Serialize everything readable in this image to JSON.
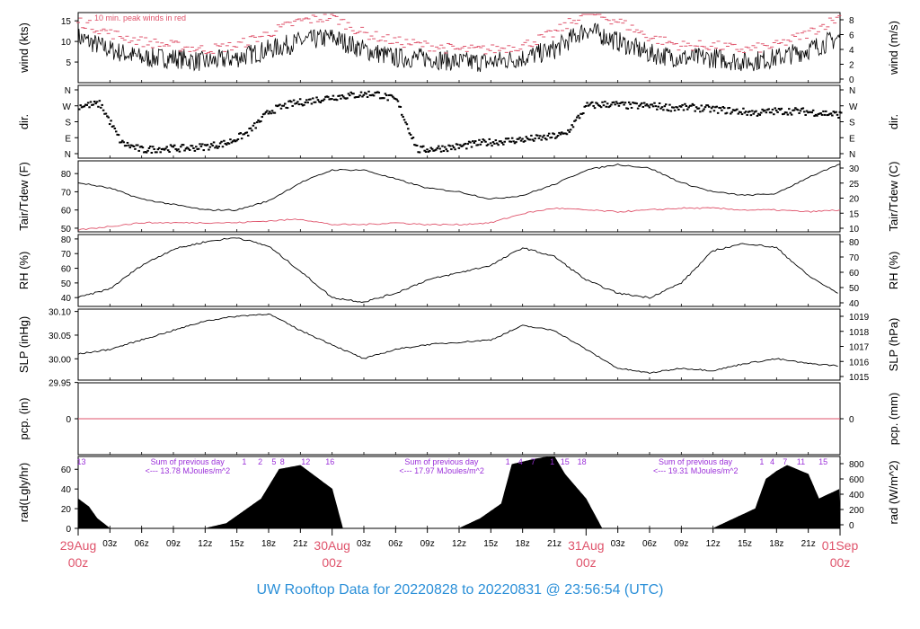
{
  "title": "UW Rooftop Data for 20220828  to  20220831 @ 23:56:54  (UTC)",
  "colors": {
    "title": "#2a8fd8",
    "date": "#df536b",
    "peak": "#df536b",
    "dew": "#df536b",
    "purple": "#9b30d9",
    "ink": "#000000",
    "zero": "#df536b"
  },
  "time_axis": {
    "hour_ticks": [
      "03z",
      "06z",
      "09z",
      "12z",
      "15z",
      "18z",
      "21z",
      "03z",
      "06z",
      "09z",
      "12z",
      "15z",
      "18z",
      "21z",
      "03z",
      "06z",
      "09z",
      "12z",
      "15z",
      "18z",
      "21z"
    ],
    "days": [
      {
        "date": "29Aug",
        "hour": "00z"
      },
      {
        "date": "30Aug",
        "hour": "00z"
      },
      {
        "date": "31Aug",
        "hour": "00z"
      },
      {
        "date": "01Sep",
        "hour": "00z"
      }
    ]
  },
  "chart_data": [
    {
      "type": "line",
      "panel": "wind",
      "ylabel": "wind (kts)",
      "ylabel_right": "wind (m/s)",
      "annotation": "10 min. peak winds in red",
      "yticks_left": [
        "5",
        "10",
        "15"
      ],
      "yticks_right": [
        "0",
        "2",
        "4",
        "6",
        "8"
      ],
      "ylim": [
        0,
        17
      ],
      "series": [
        {
          "x_hours": [
            0,
            3,
            6,
            9,
            12,
            15,
            18,
            21,
            24,
            27,
            30,
            33,
            36,
            39,
            42,
            45,
            48,
            51,
            54,
            57,
            60,
            63,
            66,
            69,
            72
          ],
          "values": [
            11,
            8,
            6,
            6,
            5,
            6,
            8,
            10,
            11,
            8,
            6,
            6,
            5,
            5,
            6,
            8,
            13,
            10,
            7,
            6,
            6,
            5,
            6,
            8,
            11
          ]
        },
        {
          "x_hours": [
            0,
            3,
            6,
            9,
            12,
            15,
            18,
            21,
            24,
            27,
            30,
            33,
            36,
            39,
            42,
            45,
            48,
            51,
            54,
            57,
            60,
            63,
            66,
            69,
            72
          ],
          "values": [
            15,
            12,
            10,
            9,
            8,
            9,
            12,
            15,
            16,
            12,
            10,
            9,
            8,
            8,
            9,
            12,
            17,
            15,
            11,
            9,
            9,
            8,
            9,
            12,
            16
          ]
        }
      ]
    },
    {
      "type": "scatter",
      "panel": "direction",
      "ylabel": "dir.",
      "yticks_left": [
        "N",
        "W",
        "S",
        "E",
        "N"
      ],
      "yticks_right": [
        "N",
        "W",
        "S",
        "E",
        "N"
      ],
      "series": [
        {
          "x_hours": [
            0,
            2,
            4,
            6,
            8,
            10,
            12,
            14,
            16,
            18,
            20,
            22,
            24,
            26,
            28,
            30,
            32,
            34,
            36,
            38,
            40,
            42,
            44,
            46,
            48,
            50,
            52,
            54,
            56,
            58,
            60,
            62,
            64,
            66,
            68,
            70,
            72
          ],
          "values": [
            270,
            280,
            60,
            20,
            30,
            30,
            40,
            60,
            120,
            240,
            280,
            300,
            320,
            330,
            340,
            300,
            20,
            30,
            40,
            60,
            70,
            80,
            90,
            110,
            270,
            280,
            270,
            270,
            260,
            260,
            250,
            240,
            230,
            240,
            240,
            230,
            220
          ]
        }
      ]
    },
    {
      "type": "line",
      "panel": "temperature",
      "ylabel": "Tair/Tdew (F)",
      "ylabel_right": "Tair/Tdew (C)",
      "yticks_left": [
        "50",
        "60",
        "70",
        "80"
      ],
      "yticks_right": [
        "10",
        "15",
        "20",
        "25",
        "30"
      ],
      "ylim": [
        48,
        87
      ],
      "series": [
        {
          "x_hours": [
            0,
            3,
            6,
            9,
            12,
            15,
            18,
            21,
            24,
            27,
            30,
            33,
            36,
            39,
            42,
            45,
            48,
            51,
            54,
            57,
            60,
            63,
            66,
            69,
            72
          ],
          "values": [
            75,
            72,
            66,
            63,
            60,
            60,
            65,
            75,
            82,
            82,
            77,
            72,
            70,
            66,
            68,
            74,
            82,
            85,
            83,
            75,
            70,
            68,
            69,
            78,
            85
          ]
        },
        {
          "x_hours": [
            0,
            3,
            6,
            9,
            12,
            15,
            18,
            21,
            24,
            27,
            30,
            33,
            36,
            39,
            42,
            45,
            48,
            51,
            54,
            57,
            60,
            63,
            66,
            69,
            72
          ],
          "values": [
            49,
            51,
            53,
            53,
            53,
            53,
            54,
            55,
            52,
            52,
            53,
            52,
            52,
            53,
            58,
            61,
            60,
            59,
            60,
            61,
            61,
            60,
            60,
            59,
            60
          ]
        }
      ]
    },
    {
      "type": "line",
      "panel": "rh",
      "ylabel": "RH (%)",
      "ylabel_right": "RH (%)",
      "yticks_left": [
        "40",
        "50",
        "60",
        "70",
        "80"
      ],
      "yticks_right": [
        "40",
        "50",
        "60",
        "70",
        "80"
      ],
      "ylim": [
        34,
        83
      ],
      "series": [
        {
          "x_hours": [
            0,
            3,
            6,
            9,
            12,
            15,
            18,
            21,
            24,
            27,
            30,
            33,
            36,
            39,
            42,
            45,
            48,
            51,
            54,
            57,
            60,
            63,
            66,
            69,
            72
          ],
          "values": [
            40,
            46,
            62,
            73,
            78,
            81,
            75,
            58,
            40,
            37,
            43,
            52,
            57,
            62,
            74,
            68,
            52,
            43,
            40,
            50,
            72,
            77,
            74,
            55,
            42
          ]
        }
      ]
    },
    {
      "type": "line",
      "panel": "pressure",
      "ylabel": "SLP (inHg)",
      "ylabel_right": "SLP (hPa)",
      "yticks_left": [
        "29.95",
        "30.00",
        "30.05",
        "30.10"
      ],
      "yticks_right": [
        "1015",
        "1016",
        "1017",
        "1018",
        "1019"
      ],
      "ylim": [
        29.955,
        30.105
      ],
      "series": [
        {
          "x_hours": [
            0,
            3,
            6,
            9,
            12,
            15,
            18,
            21,
            24,
            27,
            30,
            33,
            36,
            39,
            42,
            45,
            48,
            51,
            54,
            57,
            60,
            63,
            66,
            69,
            72
          ],
          "values": [
            30.01,
            30.02,
            30.04,
            30.06,
            30.08,
            30.09,
            30.095,
            30.06,
            30.03,
            30.0,
            30.02,
            30.03,
            30.035,
            30.04,
            30.07,
            30.06,
            30.02,
            29.98,
            29.97,
            29.98,
            29.975,
            29.99,
            30.0,
            29.99,
            29.985
          ]
        }
      ]
    },
    {
      "type": "line",
      "panel": "precipitation",
      "ylabel": "pcp. (in)",
      "ylabel_right": "pcp. (mm)",
      "yticks_left": [
        "0"
      ],
      "yticks_right": [
        "0"
      ],
      "series": [
        {
          "x_hours": [
            0,
            72
          ],
          "values": [
            0,
            0
          ]
        }
      ]
    },
    {
      "type": "area",
      "panel": "radiation",
      "ylabel": "rad(Lgly/hr)",
      "ylabel_right": "rad (W/m^2)",
      "yticks_left": [
        "0",
        "20",
        "40",
        "60"
      ],
      "yticks_right": [
        "0",
        "200",
        "400",
        "600",
        "800"
      ],
      "ylim": [
        0,
        73
      ],
      "series": [
        {
          "x_hours": [
            0,
            1,
            1.8,
            3,
            12,
            14,
            17.3,
            19,
            21,
            24,
            25,
            36,
            38,
            40,
            41,
            43,
            44,
            45,
            46,
            48,
            49.5,
            60,
            62,
            64,
            65,
            66,
            67,
            69,
            70,
            72
          ],
          "values": [
            30,
            22,
            10,
            0,
            0,
            5,
            30,
            60,
            64,
            40,
            0,
            0,
            10,
            25,
            65,
            70,
            72,
            73,
            55,
            30,
            0,
            0,
            10,
            20,
            50,
            58,
            64,
            55,
            30,
            40
          ]
        }
      ],
      "annotations": [
        {
          "label": "Sum of previous day",
          "day_index": 0
        },
        {
          "label": "<--- 13.78 MJoules/m^2",
          "day_index": 0
        },
        {
          "label": "Sum of previous day",
          "day_index": 1
        },
        {
          "label": "<--- 17.97 MJoules/m^2",
          "day_index": 1
        },
        {
          "label": "Sum of previous day",
          "day_index": 2
        },
        {
          "label": "<--- 19.31 MJoules/m^2",
          "day_index": 2
        }
      ],
      "hour_marks": [
        {
          "x": 0.3,
          "label": "13"
        },
        {
          "x": 15.7,
          "label": "1"
        },
        {
          "x": 17.2,
          "label": "2"
        },
        {
          "x": 18.5,
          "label": "5"
        },
        {
          "x": 19.3,
          "label": "8"
        },
        {
          "x": 21.5,
          "label": "12"
        },
        {
          "x": 23.8,
          "label": "16"
        },
        {
          "x": 40.6,
          "label": "1"
        },
        {
          "x": 41.8,
          "label": "4"
        },
        {
          "x": 43.0,
          "label": "7"
        },
        {
          "x": 44.8,
          "label": "1"
        },
        {
          "x": 46.0,
          "label": "15"
        },
        {
          "x": 47.6,
          "label": "18"
        },
        {
          "x": 64.6,
          "label": "1"
        },
        {
          "x": 65.6,
          "label": "4"
        },
        {
          "x": 66.8,
          "label": "7"
        },
        {
          "x": 68.3,
          "label": "11"
        },
        {
          "x": 70.4,
          "label": "15"
        }
      ]
    }
  ]
}
